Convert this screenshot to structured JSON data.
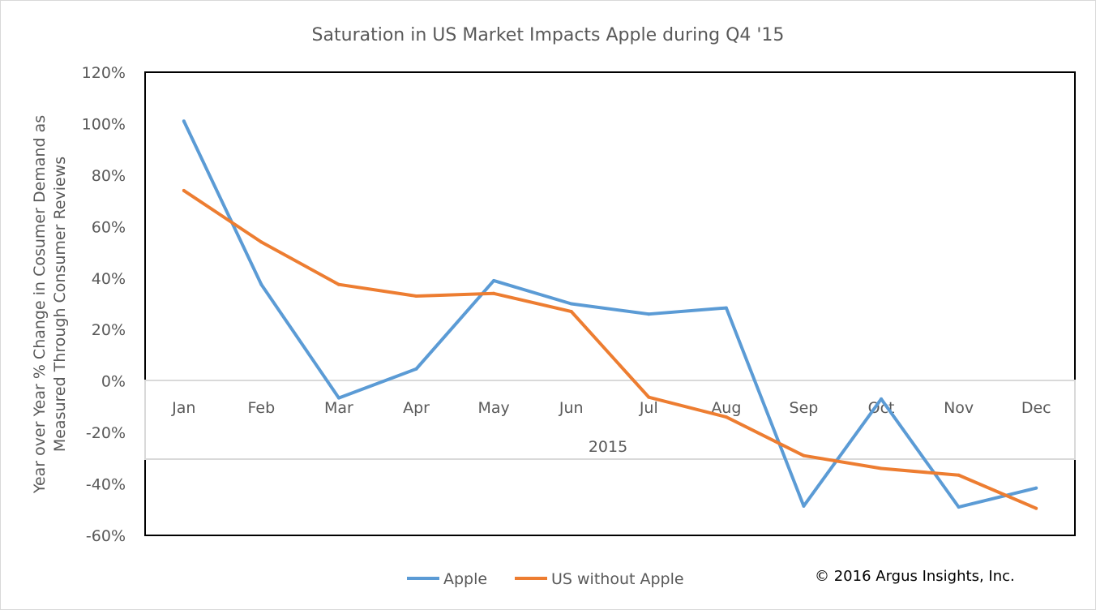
{
  "chart_data": {
    "type": "line",
    "title": "Saturation in US Market Impacts Apple during Q4 '15",
    "xlabel": "2015",
    "ylabel_lines": [
      "Year over Year % Change in Cosumer Demand  as",
      "Measured Through Consumer Reviews"
    ],
    "categories": [
      "Jan",
      "Feb",
      "Mar",
      "Apr",
      "May",
      "Jun",
      "Jul",
      "Aug",
      "Sep",
      "Oct",
      "Nov",
      "Dec"
    ],
    "ylim": [
      -60,
      120
    ],
    "yticks": [
      -60,
      -40,
      -20,
      0,
      20,
      40,
      60,
      80,
      100,
      120
    ],
    "ytick_labels": [
      "-60%",
      "-40%",
      "-20%",
      "0%",
      "20%",
      "40%",
      "60%",
      "80%",
      "100%",
      "120%"
    ],
    "series": [
      {
        "name": "Apple",
        "color": "#5b9bd5",
        "values": [
          101,
          37.5,
          -6.6,
          4.7,
          39,
          30,
          26,
          28.4,
          -48.6,
          -7,
          -49,
          -41.6
        ]
      },
      {
        "name": "US without Apple",
        "color": "#ed7d31",
        "values": [
          74,
          54,
          37.5,
          33,
          34,
          27,
          -6.3,
          -14,
          -29,
          -34,
          -36.6,
          -49.5
        ]
      }
    ],
    "legend_position": "bottom",
    "grid": false,
    "copyright": "© 2016 Argus Insights, Inc."
  }
}
